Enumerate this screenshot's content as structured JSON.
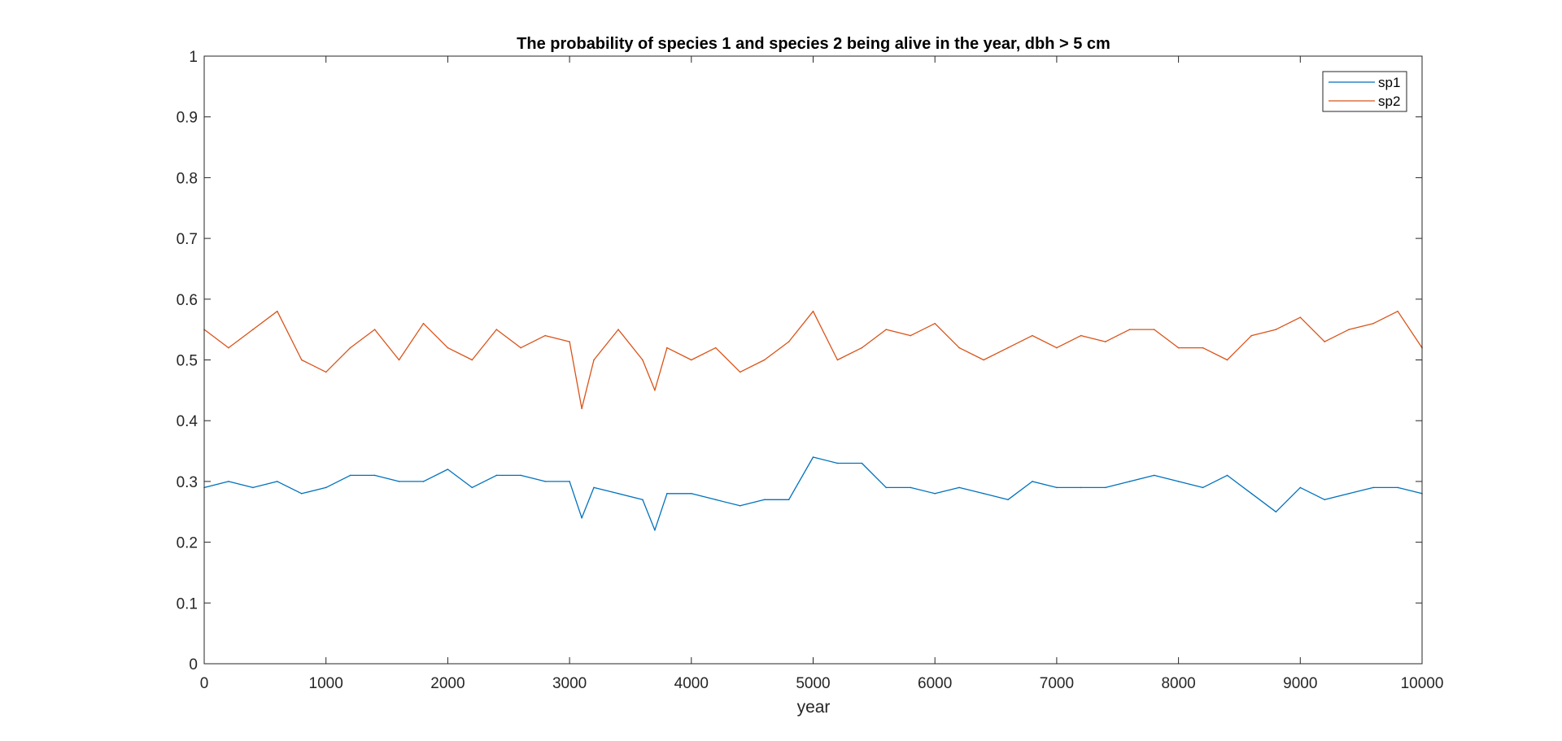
{
  "chart_data": {
    "type": "line",
    "title": "The probability of species 1 and species 2 being alive in the year, dbh > 5 cm",
    "xlabel": "year",
    "ylabel": "",
    "xlim": [
      0,
      10000
    ],
    "ylim": [
      0,
      1
    ],
    "xticks": [
      0,
      1000,
      2000,
      3000,
      4000,
      5000,
      6000,
      7000,
      8000,
      9000,
      10000
    ],
    "yticks": [
      0,
      0.1,
      0.2,
      0.3,
      0.4,
      0.5,
      0.6,
      0.7,
      0.8,
      0.9,
      1
    ],
    "xtick_labels": [
      "0",
      "1000",
      "2000",
      "3000",
      "4000",
      "5000",
      "6000",
      "7000",
      "8000",
      "9000",
      "10000"
    ],
    "ytick_labels": [
      "0",
      "0.1",
      "0.2",
      "0.3",
      "0.4",
      "0.5",
      "0.6",
      "0.7",
      "0.8",
      "0.9",
      "1"
    ],
    "grid": false,
    "legend_position": "top-right",
    "series": [
      {
        "name": "sp1",
        "color": "#0072BD",
        "x": [
          0,
          200,
          400,
          600,
          800,
          1000,
          1200,
          1400,
          1600,
          1800,
          2000,
          2200,
          2400,
          2600,
          2800,
          3000,
          3100,
          3200,
          3400,
          3600,
          3700,
          3800,
          4000,
          4200,
          4400,
          4600,
          4800,
          5000,
          5200,
          5400,
          5600,
          5800,
          6000,
          6200,
          6400,
          6600,
          6800,
          7000,
          7200,
          7400,
          7600,
          7800,
          8000,
          8200,
          8400,
          8600,
          8800,
          9000,
          9200,
          9400,
          9600,
          9800,
          10000
        ],
        "values": [
          0.29,
          0.3,
          0.29,
          0.3,
          0.28,
          0.29,
          0.31,
          0.31,
          0.3,
          0.3,
          0.32,
          0.29,
          0.31,
          0.31,
          0.3,
          0.3,
          0.24,
          0.29,
          0.28,
          0.27,
          0.22,
          0.28,
          0.28,
          0.27,
          0.26,
          0.27,
          0.27,
          0.34,
          0.33,
          0.33,
          0.29,
          0.29,
          0.28,
          0.29,
          0.28,
          0.27,
          0.3,
          0.29,
          0.29,
          0.29,
          0.3,
          0.31,
          0.3,
          0.29,
          0.31,
          0.28,
          0.25,
          0.29,
          0.27,
          0.28,
          0.29,
          0.29,
          0.28
        ]
      },
      {
        "name": "sp2",
        "color": "#D95319",
        "x": [
          0,
          200,
          400,
          600,
          800,
          1000,
          1200,
          1400,
          1600,
          1800,
          2000,
          2200,
          2400,
          2600,
          2800,
          3000,
          3100,
          3200,
          3400,
          3600,
          3700,
          3800,
          4000,
          4200,
          4400,
          4600,
          4800,
          5000,
          5200,
          5400,
          5600,
          5800,
          6000,
          6200,
          6400,
          6600,
          6800,
          7000,
          7200,
          7400,
          7600,
          7800,
          8000,
          8200,
          8400,
          8600,
          8800,
          9000,
          9200,
          9400,
          9600,
          9800,
          10000
        ],
        "values": [
          0.55,
          0.52,
          0.55,
          0.58,
          0.5,
          0.48,
          0.52,
          0.55,
          0.5,
          0.56,
          0.52,
          0.5,
          0.55,
          0.52,
          0.54,
          0.53,
          0.42,
          0.5,
          0.55,
          0.5,
          0.45,
          0.52,
          0.5,
          0.52,
          0.48,
          0.5,
          0.53,
          0.58,
          0.5,
          0.52,
          0.55,
          0.54,
          0.56,
          0.52,
          0.5,
          0.52,
          0.54,
          0.52,
          0.54,
          0.53,
          0.55,
          0.55,
          0.52,
          0.52,
          0.5,
          0.54,
          0.55,
          0.57,
          0.53,
          0.55,
          0.56,
          0.58,
          0.52
        ]
      }
    ]
  }
}
